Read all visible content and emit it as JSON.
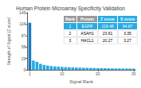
{
  "chart_data": {
    "type": "bar",
    "title": "Human Protein Microarray Specificity Validation",
    "x_label": "Signal Rank",
    "y_label": "Strength of Signal (Z score)",
    "x": [
      1,
      2,
      3,
      4,
      5,
      6,
      7,
      8,
      9,
      10,
      11,
      12,
      13,
      14,
      15,
      16,
      17,
      18,
      19,
      20,
      21,
      22,
      23,
      24,
      25,
      26,
      27,
      28,
      29,
      30
    ],
    "values": [
      119.48,
      23.61,
      20.27,
      15.2,
      12.5,
      10.8,
      9.5,
      8.8,
      8.1,
      7.5,
      7.0,
      6.6,
      6.2,
      5.9,
      5.6,
      5.3,
      5.0,
      4.8,
      4.6,
      4.4,
      4.2,
      4.0,
      3.9,
      3.7,
      3.6,
      3.5,
      3.4,
      3.3,
      3.2,
      3.1
    ],
    "colors": [
      "#1a7bbf",
      "#29abe2",
      "#29abe2",
      "#29abe2",
      "#29abe2",
      "#29abe2",
      "#29abe2",
      "#29abe2",
      "#29abe2",
      "#29abe2",
      "#29abe2",
      "#29abe2",
      "#29abe2",
      "#29abe2",
      "#29abe2",
      "#29abe2",
      "#29abe2",
      "#29abe2",
      "#29abe2",
      "#29abe2",
      "#29abe2",
      "#29abe2",
      "#29abe2",
      "#29abe2",
      "#29abe2",
      "#29abe2",
      "#29abe2",
      "#29abe2",
      "#29abe2",
      "#29abe2"
    ],
    "xlim": [
      0.3,
      30.5
    ],
    "xticks": [
      1,
      10,
      20,
      30
    ],
    "ylim": [
      0,
      145
    ],
    "yticks": [
      0,
      29,
      58,
      87,
      116,
      145
    ],
    "grid": false,
    "table": {
      "headers": [
        "Rank",
        "Protein",
        "Z score",
        "S score"
      ],
      "header_colors": [
        "#999999",
        "#999999",
        "#29abe2",
        "#29abe2"
      ],
      "rows": [
        [
          "1",
          "EGFR",
          "119.48",
          "94.87"
        ],
        [
          "2",
          "ASAH1",
          "23.61",
          "3.35"
        ],
        [
          "3",
          "HACL1",
          "20.27",
          "3.27"
        ]
      ],
      "row_colors": [
        "#29abe2",
        "#ffffff",
        "#ffffff"
      ]
    }
  }
}
